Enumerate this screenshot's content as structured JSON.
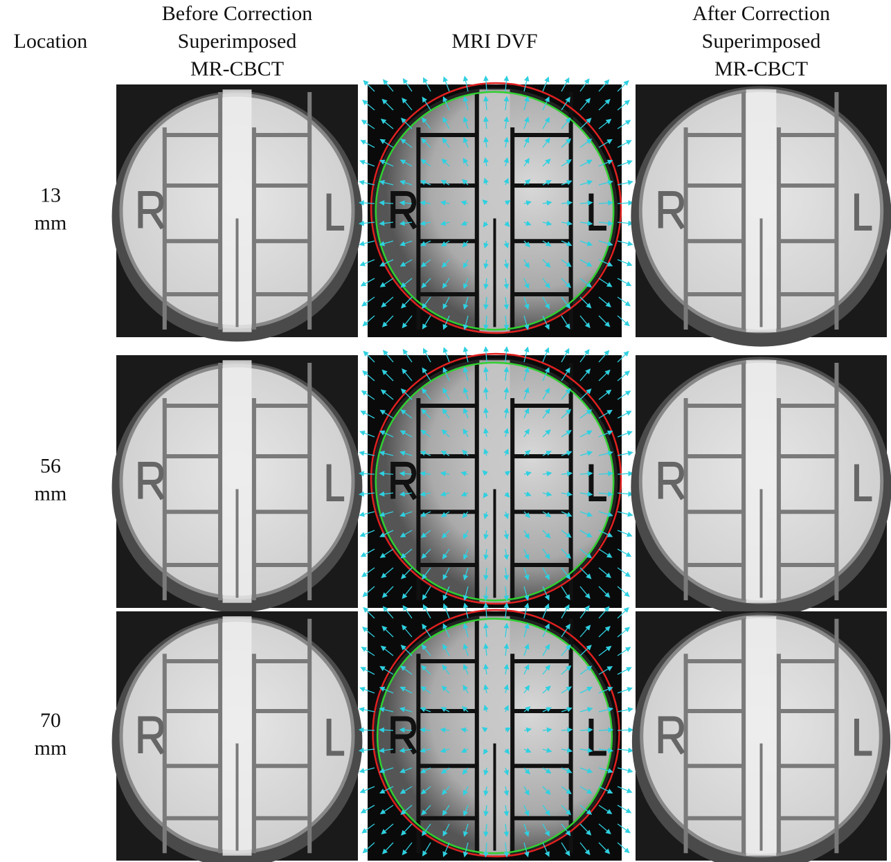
{
  "header": {
    "location": "Location",
    "columns": [
      {
        "lines": [
          "Before Correction",
          "Superimposed",
          "MR-CBCT"
        ]
      },
      {
        "lines": [
          "MRI DVF"
        ]
      },
      {
        "lines": [
          "After Correction",
          "Superimposed",
          "MR-CBCT"
        ]
      }
    ]
  },
  "rows": [
    {
      "location": [
        "13",
        "mm"
      ]
    },
    {
      "location": [
        "56",
        "mm"
      ]
    },
    {
      "location": [
        "70",
        "mm"
      ]
    }
  ]
}
